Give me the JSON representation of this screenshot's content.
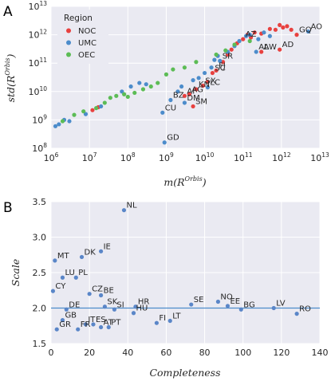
{
  "colors": {
    "NOC": "#e8413f",
    "UMC": "#4c8ccb",
    "OEC": "#5cbc55",
    "line": "#4c8ccb",
    "dot": "#5a86c8"
  },
  "panels": [
    "A",
    "B"
  ],
  "chart_data": [
    {
      "type": "scatter",
      "xlabel_main": "m(R",
      "xlabel_sup": "Orbis",
      "xlabel_end": ")",
      "ylabel_main": "std(R",
      "ylabel_sup": "Orbis",
      "ylabel_end": ")",
      "xscale": "log",
      "yscale": "log",
      "xlim": [
        1000000,
        10000000000000
      ],
      "ylim": [
        100000000,
        10000000000000
      ],
      "x_ticks": [
        {
          "base": "10",
          "exp": "6",
          "v": 1000000
        },
        {
          "base": "10",
          "exp": "7",
          "v": 10000000
        },
        {
          "base": "10",
          "exp": "8",
          "v": 100000000
        },
        {
          "base": "10",
          "exp": "9",
          "v": 1000000000
        },
        {
          "base": "10",
          "exp": "10",
          "v": 10000000000
        },
        {
          "base": "10",
          "exp": "11",
          "v": 100000000000
        },
        {
          "base": "10",
          "exp": "12",
          "v": 1000000000000
        },
        {
          "base": "10",
          "exp": "13",
          "v": 10000000000000
        }
      ],
      "y_ticks": [
        {
          "base": "10",
          "exp": "8",
          "v": 100000000
        },
        {
          "base": "10",
          "exp": "9",
          "v": 1000000000
        },
        {
          "base": "10",
          "exp": "10",
          "v": 10000000000
        },
        {
          "base": "10",
          "exp": "11",
          "v": 100000000000
        },
        {
          "base": "10",
          "exp": "12",
          "v": 1000000000000
        },
        {
          "base": "10",
          "exp": "13",
          "v": 10000000000000
        }
      ],
      "grid": true,
      "legend": {
        "title": "Region",
        "placement": "top-left",
        "entries": [
          "NOC",
          "UMC",
          "OEC"
        ]
      },
      "series": [
        {
          "name": "NOC",
          "color": "#e8413f",
          "points": [
            [
              12000000,
              2200000000
            ],
            [
              17000000,
              2800000000
            ],
            [
              4000000000,
              8000000000
            ],
            [
              6000000000,
              12000000000
            ],
            [
              9000000000,
              16000000000
            ],
            [
              12000000000,
              22000000000
            ],
            [
              16000000000,
              45000000000
            ],
            [
              20000000000,
              55000000000
            ],
            [
              30000000000,
              110000000000
            ],
            [
              40000000000,
              200000000000
            ],
            [
              50000000000,
              300000000000
            ],
            [
              70000000000,
              500000000000
            ],
            [
              100000000000,
              700000000000
            ],
            [
              130000000000,
              1000000000000
            ],
            [
              160000000000,
              800000000000
            ],
            [
              200000000000,
              1200000000000
            ],
            [
              300000000000,
              1100000000000
            ],
            [
              500000000000,
              1600000000000
            ],
            [
              700000000000,
              1500000000000
            ],
            [
              900000000000,
              2200000000000
            ],
            [
              1100000000000,
              1800000000000
            ],
            [
              1400000000000,
              2000000000000
            ],
            [
              1800000000000,
              1500000000000
            ],
            [
              2500000000000,
              1000000000000
            ],
            [
              300000000000,
              250000000000
            ],
            [
              900000000000,
              300000000000
            ],
            [
              5000000000,
              3000000000
            ],
            [
              3000000000,
              7000000000
            ]
          ]
        },
        {
          "name": "UMC",
          "color": "#4c8ccb",
          "points": [
            [
              1300000,
              600000000
            ],
            [
              1600000,
              700000000
            ],
            [
              2200000,
              1000000000
            ],
            [
              3000000,
              900000000
            ],
            [
              8000000,
              1600000000
            ],
            [
              20000000,
              3000000000
            ],
            [
              70000000,
              10000000000
            ],
            [
              120000000,
              15000000000
            ],
            [
              200000000,
              20000000000
            ],
            [
              300000000,
              18000000000
            ],
            [
              800000000,
              1800000000
            ],
            [
              900000000,
              160000000
            ],
            [
              1300000000,
              5000000000
            ],
            [
              2000000000,
              10000000000
            ],
            [
              2500000000,
              15000000000
            ],
            [
              3000000000,
              4000000000
            ],
            [
              5000000000,
              25000000000
            ],
            [
              7000000000,
              30000000000
            ],
            [
              10000000000,
              45000000000
            ],
            [
              12000000000,
              14000000000
            ],
            [
              15000000000,
              70000000000
            ],
            [
              18000000000,
              130000000000
            ],
            [
              22000000000,
              180000000000
            ],
            [
              25000000000,
              120000000000
            ],
            [
              40000000000,
              250000000000
            ],
            [
              60000000000,
              400000000000
            ],
            [
              80000000000,
              600000000000
            ],
            [
              120000000000,
              900000000000
            ],
            [
              150000000000,
              1000000000000
            ],
            [
              220000000000,
              250000000000
            ],
            [
              250000000000,
              700000000000
            ],
            [
              350000000000,
              1200000000000
            ],
            [
              500000000000,
              900000000000
            ],
            [
              5000000000000,
              1300000000000
            ]
          ]
        },
        {
          "name": "OEC",
          "color": "#5cbc55",
          "points": [
            [
              2000000,
              900000000
            ],
            [
              4000000,
              1500000000
            ],
            [
              7000000,
              2000000000
            ],
            [
              15000000,
              2600000000
            ],
            [
              25000000,
              4000000000
            ],
            [
              35000000,
              6000000000
            ],
            [
              50000000,
              7000000000
            ],
            [
              80000000,
              8000000000
            ],
            [
              100000000,
              6500000000
            ],
            [
              150000000,
              9000000000
            ],
            [
              250000000,
              12000000000
            ],
            [
              400000000,
              15000000000
            ],
            [
              600000000,
              20000000000
            ],
            [
              1000000000,
              40000000000
            ],
            [
              1500000000,
              60000000000
            ],
            [
              3000000000,
              70000000000
            ],
            [
              6000000000,
              110000000000
            ],
            [
              20000000000,
              200000000000
            ],
            [
              35000000000,
              280000000000
            ],
            [
              60000000000,
              450000000000
            ],
            [
              150000000000,
              600000000000
            ]
          ]
        }
      ],
      "annotations": [
        {
          "label": "AO",
          "x": 5000000000000,
          "y": 1300000000000
        },
        {
          "label": "GQ",
          "x": 2500000000000,
          "y": 1000000000000
        },
        {
          "label": "AW",
          "x": 300000000000,
          "y": 250000000000
        },
        {
          "label": "AD",
          "x": 900000000000,
          "y": 300000000000
        },
        {
          "label": "AL",
          "x": 220000000000,
          "y": 250000000000
        },
        {
          "label": "AZ",
          "x": 100000000000,
          "y": 700000000000
        },
        {
          "label": "SC",
          "x": 16000000000,
          "y": 45000000000
        },
        {
          "label": "FJ",
          "x": 20000000000,
          "y": 55000000000
        },
        {
          "label": "SR",
          "x": 25000000000,
          "y": 120000000000
        },
        {
          "label": "AI",
          "x": 3000000000,
          "y": 7000000000
        },
        {
          "label": "KN",
          "x": 6000000000,
          "y": 12000000000
        },
        {
          "label": "SX",
          "x": 9000000000,
          "y": 16000000000
        },
        {
          "label": "LC",
          "x": 12000000000,
          "y": 14000000000
        },
        {
          "label": "AG",
          "x": 4000000000,
          "y": 8000000000
        },
        {
          "label": "SM",
          "x": 5000000000,
          "y": 3000000000
        },
        {
          "label": "BZ",
          "x": 1300000000,
          "y": 5000000000
        },
        {
          "label": "DM",
          "x": 3000000000,
          "y": 4000000000
        },
        {
          "label": "CU",
          "x": 800000000,
          "y": 1800000000
        },
        {
          "label": "GD",
          "x": 900000000,
          "y": 160000000
        }
      ]
    },
    {
      "type": "scatter",
      "xlabel": "Completeness",
      "ylabel": "Scale",
      "xlim": [
        0,
        140
      ],
      "ylim": [
        1.5,
        3.5
      ],
      "x_ticks": [
        "0",
        "20",
        "40",
        "60",
        "80",
        "100",
        "120",
        "140"
      ],
      "y_ticks": [
        "1.5",
        "2.0",
        "2.5",
        "3.0",
        "3.5"
      ],
      "grid": true,
      "hline": 2.0,
      "points": [
        {
          "label": "NL",
          "x": 38,
          "y": 3.38
        },
        {
          "label": "MT",
          "x": 2,
          "y": 2.67
        },
        {
          "label": "DK",
          "x": 16,
          "y": 2.72
        },
        {
          "label": "IE",
          "x": 26,
          "y": 2.8
        },
        {
          "label": "LU",
          "x": 6,
          "y": 2.43
        },
        {
          "label": "PL",
          "x": 13,
          "y": 2.43
        },
        {
          "label": "CY",
          "x": 1,
          "y": 2.24
        },
        {
          "label": "CZ",
          "x": 20,
          "y": 2.2
        },
        {
          "label": "BE",
          "x": 26,
          "y": 2.18
        },
        {
          "label": "SE",
          "x": 73,
          "y": 2.05
        },
        {
          "label": "NO",
          "x": 87,
          "y": 2.09
        },
        {
          "label": "EE",
          "x": 92,
          "y": 2.03
        },
        {
          "label": "SK",
          "x": 28,
          "y": 2.02
        },
        {
          "label": "SI",
          "x": 33,
          "y": 1.98
        },
        {
          "label": "HR",
          "x": 44,
          "y": 2.02
        },
        {
          "label": "DE",
          "x": 8,
          "y": 1.98
        },
        {
          "label": "BG",
          "x": 99,
          "y": 1.98
        },
        {
          "label": "LV",
          "x": 116,
          "y": 2.0
        },
        {
          "label": "HU",
          "x": 43,
          "y": 1.93
        },
        {
          "label": "RO",
          "x": 128,
          "y": 1.92
        },
        {
          "label": "GB",
          "x": 6,
          "y": 1.83
        },
        {
          "label": "LT",
          "x": 62,
          "y": 1.82
        },
        {
          "label": "FI",
          "x": 55,
          "y": 1.79
        },
        {
          "label": "IT",
          "x": 18,
          "y": 1.77
        },
        {
          "label": "ES",
          "x": 22,
          "y": 1.77
        },
        {
          "label": "PT",
          "x": 30,
          "y": 1.73
        },
        {
          "label": "AT",
          "x": 26,
          "y": 1.73
        },
        {
          "label": "FR",
          "x": 14,
          "y": 1.7
        },
        {
          "label": "GR",
          "x": 3,
          "y": 1.7
        }
      ]
    }
  ]
}
